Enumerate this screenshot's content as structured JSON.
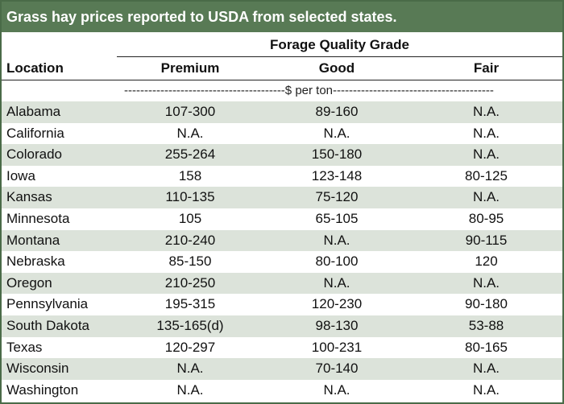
{
  "title": "Grass hay prices reported to USDA from selected states.",
  "header": {
    "group_label": "Forage Quality Grade",
    "location": "Location",
    "columns": [
      "Premium",
      "Good",
      "Fair"
    ]
  },
  "units": "----------------------------------------$ per ton----------------------------------------",
  "colors": {
    "title_bg": "#587a55",
    "shade": "#dce3da",
    "border": "#4a6b48"
  },
  "rows": [
    {
      "location": "Alabama",
      "premium": "107-300",
      "good": "89-160",
      "fair": "N.A."
    },
    {
      "location": "California",
      "premium": "N.A.",
      "good": "N.A.",
      "fair": "N.A."
    },
    {
      "location": "Colorado",
      "premium": "255-264",
      "good": "150-180",
      "fair": "N.A."
    },
    {
      "location": "Iowa",
      "premium": "158",
      "good": "123-148",
      "fair": "80-125"
    },
    {
      "location": "Kansas",
      "premium": "110-135",
      "good": "75-120",
      "fair": "N.A."
    },
    {
      "location": "Minnesota",
      "premium": "105",
      "good": "65-105",
      "fair": "80-95"
    },
    {
      "location": "Montana",
      "premium": "210-240",
      "good": "N.A.",
      "fair": "90-115"
    },
    {
      "location": "Nebraska",
      "premium": "85-150",
      "good": "80-100",
      "fair": "120"
    },
    {
      "location": "Oregon",
      "premium": "210-250",
      "good": "N.A.",
      "fair": "N.A."
    },
    {
      "location": "Pennsylvania",
      "premium": "195-315",
      "good": "120-230",
      "fair": "90-180"
    },
    {
      "location": "South Dakota",
      "premium": "135-165(d)",
      "good": "98-130",
      "fair": "53-88"
    },
    {
      "location": "Texas",
      "premium": "120-297",
      "good": "100-231",
      "fair": "80-165"
    },
    {
      "location": "Wisconsin",
      "premium": "N.A.",
      "good": "70-140",
      "fair": "N.A."
    },
    {
      "location": "Washington",
      "premium": "N.A.",
      "good": "N.A.",
      "fair": "N.A."
    }
  ]
}
